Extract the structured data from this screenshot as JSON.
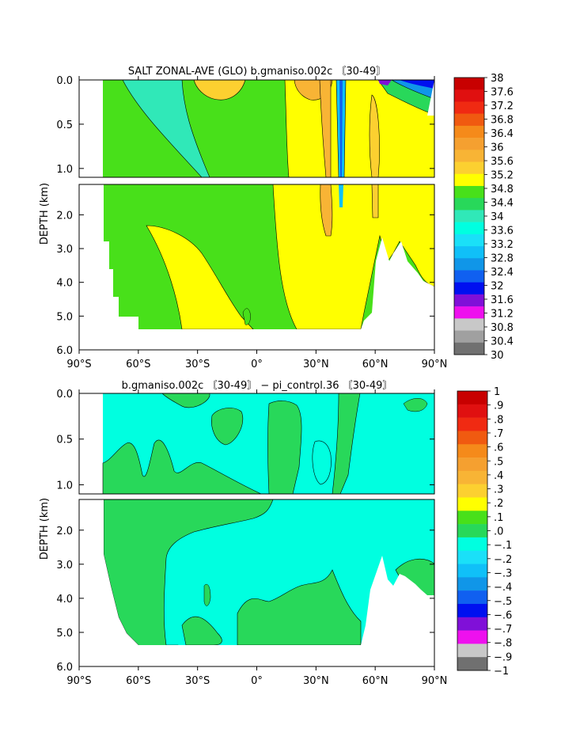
{
  "chart_data": [
    {
      "type": "heatmap",
      "title": "SALT ZONAL-AVE (GLO) b.gmaniso.002c 〘30-49〙",
      "xlabel": "",
      "ylabel": "DEPTH (km)",
      "x_ticks": [
        "90°S",
        "60°S",
        "30°S",
        "0°",
        "30°N",
        "60°N",
        "90°N"
      ],
      "y_ticks_upper": [
        "0.0",
        "0.5",
        "1.0"
      ],
      "y_ticks_lower": [
        "2.0",
        "3.0",
        "4.0",
        "5.0",
        "6.0"
      ],
      "xlim": [
        -90,
        90
      ],
      "ylim": [
        6.0,
        0.0
      ],
      "upper_panel_depth_range": [
        0.0,
        1.1
      ],
      "lower_panel_depth_range": [
        1.1,
        6.0
      ],
      "colorbar_labels": [
        "38",
        "37.6",
        "37.2",
        "36.8",
        "36.4",
        "36",
        "35.6",
        "35.2",
        "34.8",
        "34.4",
        "34",
        "33.6",
        "33.2",
        "32.8",
        "32.4",
        "32",
        "31.6",
        "31.2",
        "30.8",
        "30.4",
        "30"
      ],
      "colorbar_colors": [
        "#c80000",
        "#e01010",
        "#f02a12",
        "#f05a10",
        "#f58a1a",
        "#f5a030",
        "#f8b435",
        "#fcd030",
        "#ffff00",
        "#48e01a",
        "#28d85a",
        "#30e8b8",
        "#00ffe0",
        "#1ae0f8",
        "#10c0f8",
        "#1096e8",
        "#1060f0",
        "#0010f0",
        "#8010d8",
        "#ee10ee",
        "#c8c8c8",
        "#a0a0a0",
        "#707070"
      ]
    },
    {
      "type": "heatmap",
      "title": "b.gmaniso.002c 〘30-49〙 − pi_control.36 〘30-49〙",
      "xlabel": "",
      "ylabel": "DEPTH (km)",
      "x_ticks": [
        "90°S",
        "60°S",
        "30°S",
        "0°",
        "30°N",
        "60°N",
        "90°N"
      ],
      "y_ticks_upper": [
        "0.0",
        "0.5",
        "1.0"
      ],
      "y_ticks_lower": [
        "2.0",
        "3.0",
        "4.0",
        "5.0",
        "6.0"
      ],
      "xlim": [
        -90,
        90
      ],
      "ylim": [
        6.0,
        0.0
      ],
      "upper_panel_depth_range": [
        0.0,
        1.1
      ],
      "lower_panel_depth_range": [
        1.1,
        6.0
      ],
      "colorbar_labels": [
        "1",
        ".9",
        ".8",
        ".7",
        ".6",
        ".5",
        ".4",
        ".3",
        ".2",
        ".1",
        ".0",
        "−.1",
        "−.2",
        "−.3",
        "−.4",
        "−.5",
        "−.6",
        "−.7",
        "−.8",
        "−.9",
        "−1"
      ],
      "colorbar_colors": [
        "#c80000",
        "#e01010",
        "#f02a12",
        "#f05a10",
        "#f58a1a",
        "#f5a030",
        "#f8b435",
        "#fcd030",
        "#ffff00",
        "#48e01a",
        "#28d85a",
        "#00ffe0",
        "#1ae0f8",
        "#10c0f8",
        "#1096e8",
        "#1060f0",
        "#0010f0",
        "#8010d8",
        "#ee10ee",
        "#c8c8c8",
        "#707070"
      ]
    }
  ]
}
